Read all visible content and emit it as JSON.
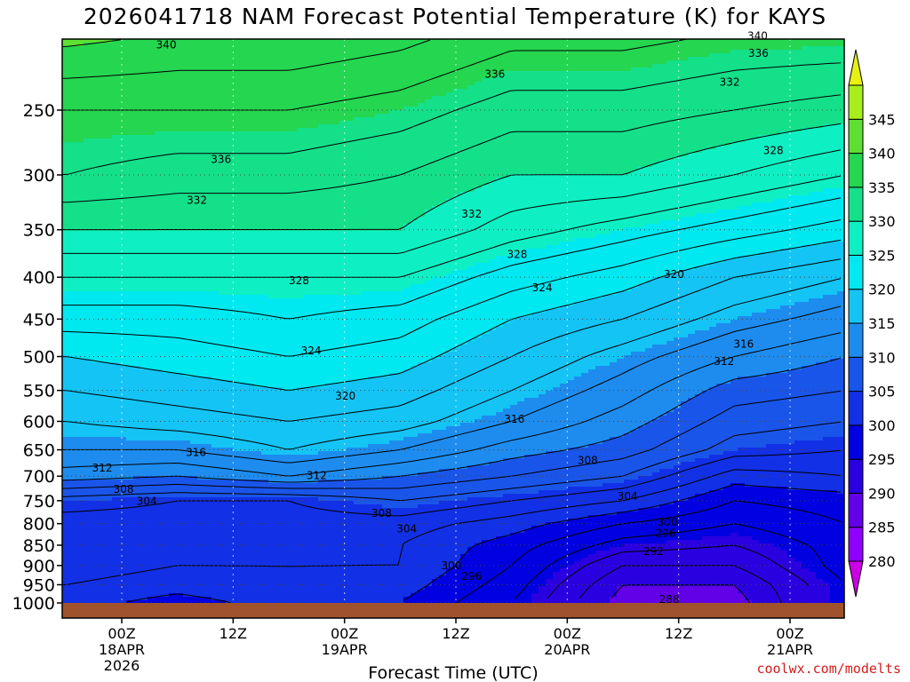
{
  "page": {
    "title": "2026041718 NAM Forecast Potential Temperature (K) for KAYS",
    "credit": "coolwx.com/modelts"
  },
  "chart_data": {
    "type": "heatmap",
    "title": "2026041718 NAM Forecast Potential Temperature (K) for KAYS",
    "xlabel": "Forecast Time (UTC)",
    "ylabel": "",
    "x_ticks": [
      {
        "label": "00Z",
        "sub": [
          "18APR",
          "2026"
        ],
        "hour": 6
      },
      {
        "label": "12Z",
        "sub": [],
        "hour": 18
      },
      {
        "label": "00Z",
        "sub": [
          "19APR"
        ],
        "hour": 30
      },
      {
        "label": "12Z",
        "sub": [],
        "hour": 42
      },
      {
        "label": "00Z",
        "sub": [
          "20APR"
        ],
        "hour": 54
      },
      {
        "label": "12Z",
        "sub": [],
        "hour": 66
      },
      {
        "label": "00Z",
        "sub": [
          "21APR"
        ],
        "hour": 78
      }
    ],
    "xlim_hours": [
      0,
      84
    ],
    "y_ticks": [
      250,
      300,
      350,
      400,
      450,
      500,
      550,
      600,
      650,
      700,
      750,
      800,
      850,
      900,
      950,
      1000
    ],
    "ylim_hpa": [
      200,
      1020
    ],
    "log_pressure": true,
    "colorbar": {
      "levels": [
        280,
        285,
        290,
        295,
        300,
        305,
        310,
        315,
        320,
        325,
        330,
        335,
        340,
        345
      ],
      "colors": [
        "#cc00e6",
        "#8f00ff",
        "#6200e8",
        "#2a00e0",
        "#0000e0",
        "#1230e6",
        "#1a55ea",
        "#1e8cef",
        "#14c4f5",
        "#00e8f0",
        "#0ef0c4",
        "#14e08a",
        "#24d650",
        "#5ee032",
        "#a8ee1c",
        "#e8f212"
      ]
    },
    "hours": [
      0,
      12,
      24,
      36,
      48,
      60,
      72,
      84
    ],
    "theta_profiles": [
      {
        "hour": 0,
        "pressure": [
          1000,
          950,
          900,
          850,
          800,
          750,
          700,
          650,
          600,
          550,
          500,
          450,
          400,
          350,
          300,
          250,
          200
        ],
        "theta": [
          301,
          302,
          303,
          303,
          303,
          305,
          311,
          314,
          316,
          318,
          320,
          323,
          326,
          330,
          334,
          336,
          341
        ]
      },
      {
        "hour": 12,
        "pressure": [
          1000,
          950,
          900,
          850,
          800,
          750,
          700,
          650,
          600,
          550,
          500,
          450,
          400,
          350,
          300,
          250,
          200
        ],
        "theta": [
          299,
          301,
          302,
          303,
          303,
          304,
          310,
          314,
          317,
          319,
          321,
          323,
          326,
          330,
          333,
          336,
          340
        ]
      },
      {
        "hour": 24,
        "pressure": [
          1000,
          950,
          900,
          850,
          800,
          750,
          700,
          650,
          600,
          550,
          500,
          450,
          400,
          350,
          300,
          250,
          200
        ],
        "theta": [
          301,
          302,
          302,
          303,
          303,
          304,
          312,
          316,
          318,
          320,
          322,
          324,
          326,
          330,
          333,
          336,
          340
        ]
      },
      {
        "hour": 36,
        "pressure": [
          1000,
          950,
          900,
          850,
          800,
          750,
          700,
          650,
          600,
          550,
          500,
          450,
          400,
          350,
          300,
          250,
          200
        ],
        "theta": [
          300,
          301,
          302,
          302,
          303,
          306,
          310,
          314,
          317,
          319,
          321,
          323,
          326,
          330,
          332,
          335,
          339
        ]
      },
      {
        "hour": 48,
        "pressure": [
          1000,
          950,
          900,
          850,
          800,
          750,
          700,
          650,
          600,
          550,
          500,
          450,
          400,
          350,
          300,
          250,
          200
        ],
        "theta": [
          296,
          297,
          298,
          299,
          301,
          304,
          308,
          311,
          314,
          316,
          318,
          320,
          323,
          327,
          330,
          333,
          337
        ]
      },
      {
        "hour": 60,
        "pressure": [
          1000,
          950,
          900,
          850,
          800,
          750,
          700,
          650,
          600,
          550,
          500,
          450,
          400,
          350,
          300,
          250,
          200
        ],
        "theta": [
          289,
          290,
          292,
          295,
          298,
          302,
          306,
          309,
          311,
          313,
          315,
          318,
          321,
          325,
          330,
          333,
          337
        ]
      },
      {
        "hour": 72,
        "pressure": [
          1000,
          950,
          900,
          850,
          800,
          750,
          700,
          650,
          600,
          550,
          500,
          450,
          400,
          350,
          300,
          250,
          200
        ],
        "theta": [
          289,
          290,
          292,
          294,
          296,
          298,
          301,
          305,
          307,
          309,
          312,
          315,
          318,
          323,
          328,
          332,
          336
        ]
      },
      {
        "hour": 84,
        "pressure": [
          1000,
          950,
          900,
          850,
          800,
          750,
          700,
          650,
          600,
          550,
          500,
          450,
          400,
          350,
          300,
          250,
          200
        ],
        "theta": [
          296,
          296,
          297,
          297,
          298,
          299,
          302,
          304,
          306,
          308,
          310,
          313,
          316,
          321,
          326,
          331,
          336
        ]
      }
    ],
    "contour_labels": [
      {
        "text": "340",
        "hour": 10.8,
        "pressure": 208
      },
      {
        "text": "340",
        "hour": 74.5,
        "pressure": 203
      },
      {
        "text": "336",
        "hour": 74.6,
        "pressure": 213
      },
      {
        "text": "336",
        "hour": 46.2,
        "pressure": 226
      },
      {
        "text": "332",
        "hour": 71.5,
        "pressure": 231
      },
      {
        "text": "336",
        "hour": 16.7,
        "pressure": 287
      },
      {
        "text": "328",
        "hour": 76.2,
        "pressure": 280
      },
      {
        "text": "332",
        "hour": 14.1,
        "pressure": 322
      },
      {
        "text": "332",
        "hour": 43.7,
        "pressure": 335
      },
      {
        "text": "328",
        "hour": 48.6,
        "pressure": 375
      },
      {
        "text": "324",
        "hour": 51.3,
        "pressure": 412
      },
      {
        "text": "320",
        "hour": 65.5,
        "pressure": 397
      },
      {
        "text": "328",
        "hour": 25.1,
        "pressure": 404
      },
      {
        "text": "316",
        "hour": 73.0,
        "pressure": 483
      },
      {
        "text": "324",
        "hour": 26.4,
        "pressure": 492
      },
      {
        "text": "312",
        "hour": 70.9,
        "pressure": 507
      },
      {
        "text": "320",
        "hour": 30.1,
        "pressure": 559
      },
      {
        "text": "316",
        "hour": 48.3,
        "pressure": 596
      },
      {
        "text": "316",
        "hour": 14.0,
        "pressure": 655
      },
      {
        "text": "308",
        "hour": 56.2,
        "pressure": 670
      },
      {
        "text": "312",
        "hour": 3.9,
        "pressure": 684
      },
      {
        "text": "312",
        "hour": 27.0,
        "pressure": 699
      },
      {
        "text": "308",
        "hour": 6.2,
        "pressure": 726
      },
      {
        "text": "304",
        "hour": 60.5,
        "pressure": 741
      },
      {
        "text": "304",
        "hour": 8.7,
        "pressure": 751
      },
      {
        "text": "308",
        "hour": 34.0,
        "pressure": 777
      },
      {
        "text": "300",
        "hour": 64.8,
        "pressure": 797
      },
      {
        "text": "304",
        "hour": 36.7,
        "pressure": 812
      },
      {
        "text": "296",
        "hour": 64.6,
        "pressure": 822
      },
      {
        "text": "292",
        "hour": 63.3,
        "pressure": 865
      },
      {
        "text": "300",
        "hour": 41.5,
        "pressure": 900
      },
      {
        "text": "296",
        "hour": 43.7,
        "pressure": 928
      },
      {
        "text": "288",
        "hour": 65.0,
        "pressure": 990
      }
    ]
  }
}
